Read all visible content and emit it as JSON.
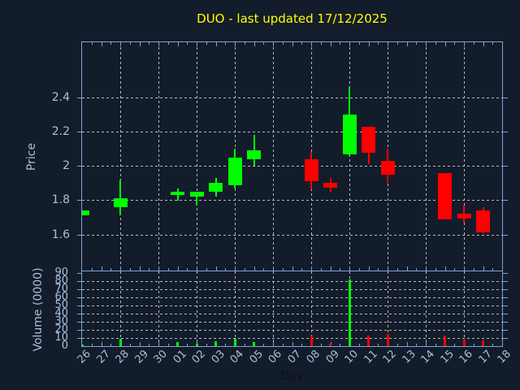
{
  "colors": {
    "background": "#131c2b",
    "axis_border": "#7fa5d1",
    "grid": "#b5bac1",
    "tick_label": "#a7c0dc",
    "title": "#ffff00",
    "xlabel": "#0c1118",
    "up": "#00ff00",
    "down": "#ff0000"
  },
  "chart_data": {
    "type": "candlestick_with_volume",
    "title": "DUO - last updated 17/12/2025",
    "x_axis": {
      "label": "Day",
      "categories": [
        "26",
        "27",
        "28",
        "29",
        "30",
        "01",
        "02",
        "03",
        "04",
        "05",
        "06",
        "07",
        "08",
        "09",
        "10",
        "11",
        "12",
        "13",
        "14",
        "15",
        "16",
        "17",
        "18"
      ],
      "label_rotation_deg": 45,
      "gridline_days": [
        "28",
        "30",
        "02",
        "04",
        "06",
        "08",
        "10",
        "12",
        "14",
        "16"
      ]
    },
    "price_axis": {
      "label": "Price",
      "ylim": [
        1.39,
        2.72
      ],
      "grid": true,
      "ticks": [
        {
          "value": 1.6,
          "label": "1.6"
        },
        {
          "value": 1.8,
          "label": "1.8"
        },
        {
          "value": 2.0,
          "label": "2"
        },
        {
          "value": 2.2,
          "label": "2.2"
        },
        {
          "value": 2.4,
          "label": "2.4"
        }
      ]
    },
    "volume_axis": {
      "label": "Volume (0000)",
      "ylim": [
        0,
        93
      ],
      "grid": true,
      "ticks": [
        {
          "value": 0,
          "label": "0"
        },
        {
          "value": 10,
          "label": "10"
        },
        {
          "value": 20,
          "label": "20"
        },
        {
          "value": 30,
          "label": "30"
        },
        {
          "value": 40,
          "label": "40"
        },
        {
          "value": 50,
          "label": "50"
        },
        {
          "value": 60,
          "label": "60"
        },
        {
          "value": 70,
          "label": "70"
        },
        {
          "value": 80,
          "label": "80"
        },
        {
          "value": 90,
          "label": "90"
        }
      ]
    },
    "candles": [
      {
        "day": "26",
        "open": 1.71,
        "high": 1.74,
        "low": 1.71,
        "close": 1.74,
        "volume": 2
      },
      {
        "day": "28",
        "open": 1.76,
        "high": 1.92,
        "low": 1.71,
        "close": 1.81,
        "volume": 9
      },
      {
        "day": "01",
        "open": 1.83,
        "high": 1.87,
        "low": 1.8,
        "close": 1.85,
        "volume": 5
      },
      {
        "day": "02",
        "open": 1.82,
        "high": 1.85,
        "low": 1.77,
        "close": 1.85,
        "volume": 3
      },
      {
        "day": "03",
        "open": 1.85,
        "high": 1.93,
        "low": 1.82,
        "close": 1.9,
        "volume": 6
      },
      {
        "day": "04",
        "open": 1.89,
        "high": 2.1,
        "low": 1.87,
        "close": 2.05,
        "volume": 9
      },
      {
        "day": "05",
        "open": 2.04,
        "high": 2.18,
        "low": 2.0,
        "close": 2.09,
        "volume": 5
      },
      {
        "day": "08",
        "open": 2.04,
        "high": 2.08,
        "low": 1.86,
        "close": 1.91,
        "volume": 13
      },
      {
        "day": "09",
        "open": 1.9,
        "high": 1.93,
        "low": 1.85,
        "close": 1.87,
        "volume": 3
      },
      {
        "day": "10",
        "open": 2.07,
        "high": 2.46,
        "low": 2.06,
        "close": 2.3,
        "volume": 82
      },
      {
        "day": "11",
        "open": 2.23,
        "high": 2.23,
        "low": 2.01,
        "close": 2.08,
        "volume": 13
      },
      {
        "day": "12",
        "open": 2.03,
        "high": 2.1,
        "low": 1.9,
        "close": 1.95,
        "volume": 15
      },
      {
        "day": "15",
        "open": 1.96,
        "high": 1.96,
        "low": 1.69,
        "close": 1.69,
        "volume": 13
      },
      {
        "day": "16",
        "open": 1.72,
        "high": 1.77,
        "low": 1.67,
        "close": 1.69,
        "volume": 8
      },
      {
        "day": "17",
        "open": 1.74,
        "high": 1.76,
        "low": 1.61,
        "close": 1.61,
        "volume": 7
      }
    ]
  }
}
